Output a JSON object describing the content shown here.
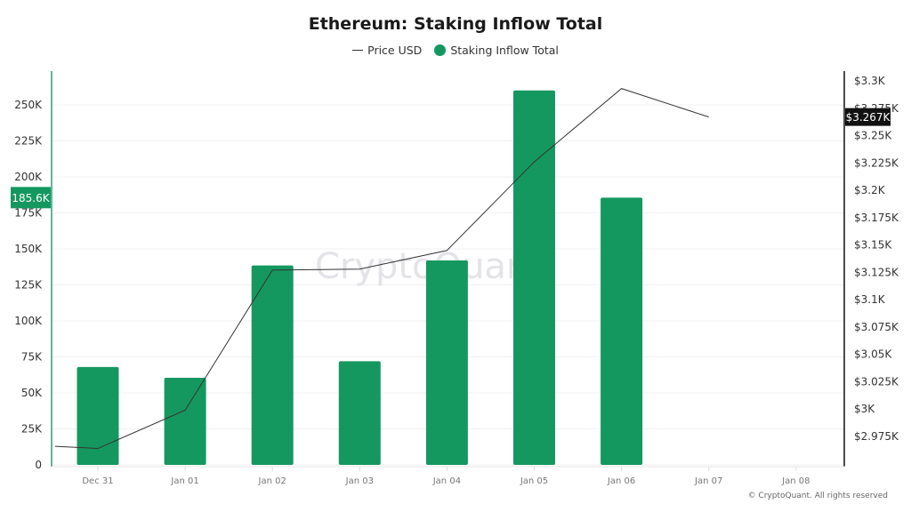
{
  "title": "Ethereum: Staking Inflow Total",
  "legend": [
    {
      "label": "Price USD",
      "type": "line",
      "color": "#333333"
    },
    {
      "label": "Staking Inflow Total",
      "type": "dot",
      "color": "#15985f"
    }
  ],
  "left_axis": {
    "ticks": [
      "0",
      "25K",
      "50K",
      "75K",
      "100K",
      "125K",
      "150K",
      "175K",
      "200K",
      "225K",
      "250K"
    ],
    "marker_label": "185.6K",
    "marker_color": "#15985f"
  },
  "right_axis": {
    "ticks": [
      "$2.975K",
      "$3K",
      "$3.025K",
      "$3.05K",
      "$3.075K",
      "$3.1K",
      "$3.125K",
      "$3.15K",
      "$3.175K",
      "$3.2K",
      "$3.225K",
      "$3.25K",
      "$3.275K",
      "$3.3K"
    ],
    "marker_label": "$3.267K",
    "marker_color": "#111111"
  },
  "x_axis": {
    "ticks": [
      "Dec 31",
      "Jan 01",
      "Jan 02",
      "Jan 03",
      "Jan 04",
      "Jan 05",
      "Jan 06",
      "Jan 07",
      "Jan 08"
    ]
  },
  "watermark": "CryptoQuant",
  "footer": "© CryptoQuant. All rights reserved",
  "chart_data": {
    "type": "bar",
    "title": "Ethereum: Staking Inflow Total",
    "categories": [
      "Dec 31",
      "Jan 01",
      "Jan 02",
      "Jan 03",
      "Jan 04",
      "Jan 05",
      "Jan 06",
      "Jan 07",
      "Jan 08"
    ],
    "series": [
      {
        "name": "Staking Inflow Total",
        "type": "bar",
        "axis": "left",
        "color": "#15985f",
        "values": [
          68000,
          60500,
          138500,
          72000,
          142000,
          260000,
          185600,
          null,
          null
        ]
      },
      {
        "name": "Price USD",
        "type": "line",
        "axis": "right",
        "color": "#333333",
        "values": [
          2964,
          2999,
          3127,
          3128,
          3145,
          3226,
          3293,
          3267,
          null
        ]
      }
    ],
    "xlabel": "",
    "ylabel_left": "Staking Inflow Total",
    "ylabel_right": "Price USD",
    "ylim_left": [
      0,
      260000
    ],
    "ylim_right": [
      2950,
      3310
    ],
    "grid": true,
    "legend_position": "top"
  }
}
